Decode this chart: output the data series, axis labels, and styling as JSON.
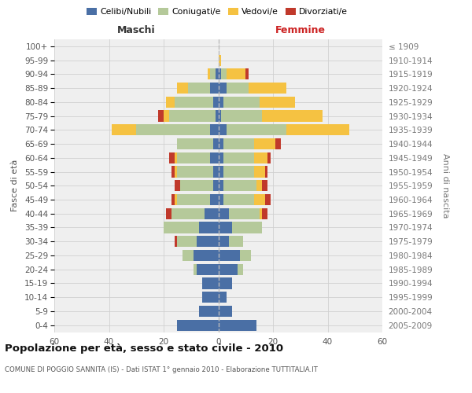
{
  "age_groups": [
    "0-4",
    "5-9",
    "10-14",
    "15-19",
    "20-24",
    "25-29",
    "30-34",
    "35-39",
    "40-44",
    "45-49",
    "50-54",
    "55-59",
    "60-64",
    "65-69",
    "70-74",
    "75-79",
    "80-84",
    "85-89",
    "90-94",
    "95-99",
    "100+"
  ],
  "birth_years": [
    "2005-2009",
    "2000-2004",
    "1995-1999",
    "1990-1994",
    "1985-1989",
    "1980-1984",
    "1975-1979",
    "1970-1974",
    "1965-1969",
    "1960-1964",
    "1955-1959",
    "1950-1954",
    "1945-1949",
    "1940-1944",
    "1935-1939",
    "1930-1934",
    "1925-1929",
    "1920-1924",
    "1915-1919",
    "1910-1914",
    "≤ 1909"
  ],
  "males": {
    "celibi": [
      15,
      7,
      6,
      6,
      8,
      9,
      8,
      7,
      5,
      3,
      2,
      2,
      3,
      2,
      3,
      1,
      2,
      3,
      1,
      0,
      0
    ],
    "coniugati": [
      0,
      0,
      0,
      0,
      1,
      4,
      7,
      13,
      12,
      12,
      12,
      13,
      12,
      13,
      27,
      17,
      14,
      8,
      2,
      0,
      0
    ],
    "vedovi": [
      0,
      0,
      0,
      0,
      0,
      0,
      0,
      0,
      0,
      1,
      0,
      1,
      1,
      0,
      9,
      2,
      3,
      4,
      1,
      0,
      0
    ],
    "divorziati": [
      0,
      0,
      0,
      0,
      0,
      0,
      1,
      0,
      2,
      1,
      2,
      1,
      2,
      0,
      0,
      2,
      0,
      0,
      0,
      0,
      0
    ]
  },
  "females": {
    "nubili": [
      14,
      5,
      3,
      5,
      7,
      8,
      4,
      5,
      4,
      2,
      2,
      2,
      2,
      2,
      3,
      1,
      2,
      3,
      1,
      0,
      0
    ],
    "coniugate": [
      0,
      0,
      0,
      0,
      2,
      4,
      5,
      11,
      11,
      11,
      12,
      11,
      11,
      11,
      22,
      15,
      13,
      8,
      2,
      0,
      0
    ],
    "vedove": [
      0,
      0,
      0,
      0,
      0,
      0,
      0,
      0,
      1,
      4,
      2,
      4,
      5,
      8,
      23,
      22,
      13,
      14,
      7,
      1,
      0
    ],
    "divorziate": [
      0,
      0,
      0,
      0,
      0,
      0,
      0,
      0,
      2,
      2,
      2,
      1,
      1,
      2,
      0,
      0,
      0,
      0,
      1,
      0,
      0
    ]
  },
  "colors": {
    "celibi": "#4a6fa5",
    "coniugati": "#b5c99a",
    "vedovi": "#f5c242",
    "divorziati": "#c0392b"
  },
  "xlim": 60,
  "title": "Popolazione per età, sesso e stato civile - 2010",
  "subtitle": "COMUNE DI POGGIO SANNITA (IS) - Dati ISTAT 1° gennaio 2010 - Elaborazione TUTTITALIA.IT",
  "ylabel_left": "Fasce di età",
  "ylabel_right": "Anni di nascita",
  "label_maschi": "Maschi",
  "label_femmine": "Femmine",
  "bg_color": "#efefef",
  "grid_color": "#d0d0d0",
  "legend_labels": [
    "Celibi/Nubili",
    "Coniugati/e",
    "Vedovi/e",
    "Divorziati/e"
  ]
}
